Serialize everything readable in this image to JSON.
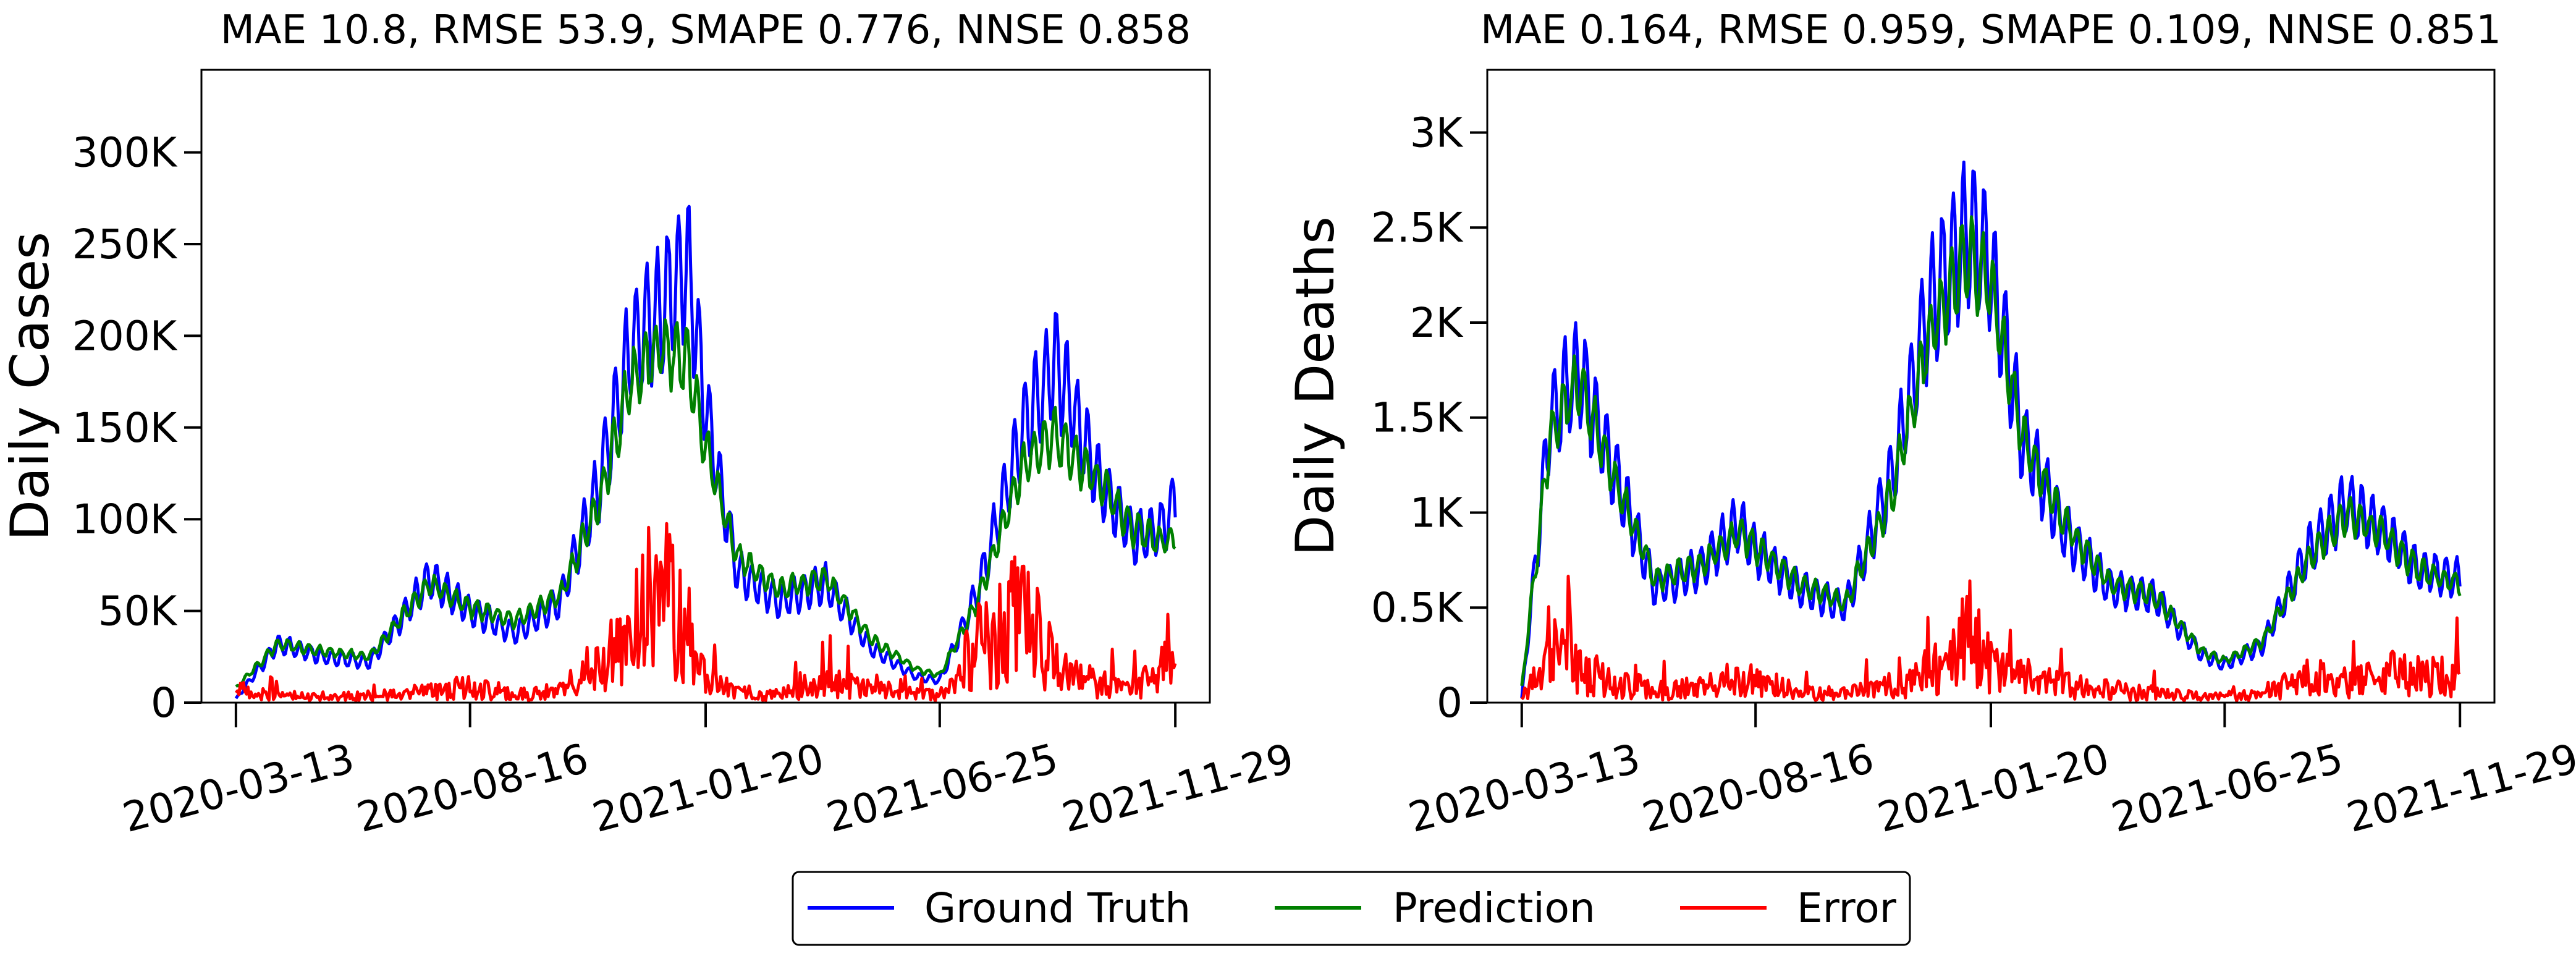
{
  "legend": [
    {
      "label": "Ground Truth",
      "color": "#0000ff"
    },
    {
      "label": "Prediction",
      "color": "#008000"
    },
    {
      "label": "Error",
      "color": "#ff0000"
    }
  ],
  "chart_data": [
    {
      "type": "line",
      "title": "MAE 10.8, RMSE 53.9, SMAPE 0.776, NNSE 0.858",
      "ylabel": "Daily Cases",
      "xlabel": "",
      "ylim": [
        0,
        345000
      ],
      "yticks": [
        0,
        50000,
        100000,
        150000,
        200000,
        250000,
        300000
      ],
      "ytick_labels": [
        "0",
        "50K",
        "100K",
        "150K",
        "200K",
        "250K",
        "300K"
      ],
      "xlim": [
        "2020-02-19",
        "2021-12-22"
      ],
      "xticks": [
        "2020-03-13",
        "2020-08-16",
        "2021-01-20",
        "2021-06-25",
        "2021-11-29"
      ],
      "grid": false,
      "series": [
        {
          "name": "Ground Truth",
          "color": "#0000ff",
          "x": [
            "2020-03-13",
            "2020-04-10",
            "2020-05-10",
            "2020-06-10",
            "2020-07-20",
            "2020-08-16",
            "2020-09-15",
            "2020-10-15",
            "2020-11-10",
            "2020-12-01",
            "2020-12-20",
            "2021-01-08",
            "2021-01-20",
            "2021-02-10",
            "2021-03-10",
            "2021-04-10",
            "2021-05-10",
            "2021-06-10",
            "2021-06-25",
            "2021-07-20",
            "2021-08-20",
            "2021-09-10",
            "2021-10-10",
            "2021-11-01",
            "2021-11-20",
            "2021-11-29"
          ],
          "y": [
            2000,
            32000,
            25000,
            22000,
            68000,
            50000,
            38000,
            55000,
            120000,
            195000,
            215000,
            240000,
            160000,
            72000,
            55000,
            65000,
            30000,
            14000,
            12000,
            60000,
            150000,
            185000,
            120000,
            90000,
            95000,
            110000
          ]
        },
        {
          "name": "Prediction",
          "color": "#008000",
          "x": [
            "2020-03-13",
            "2020-04-10",
            "2020-05-10",
            "2020-06-10",
            "2020-07-20",
            "2020-08-16",
            "2020-09-15",
            "2020-10-15",
            "2020-11-10",
            "2020-12-01",
            "2020-12-20",
            "2021-01-08",
            "2021-01-20",
            "2021-02-10",
            "2021-03-10",
            "2021-04-10",
            "2021-05-10",
            "2021-06-10",
            "2021-06-25",
            "2021-07-20",
            "2021-08-20",
            "2021-09-10",
            "2021-10-10",
            "2021-11-01",
            "2021-11-20",
            "2021-11-29"
          ],
          "y": [
            8000,
            32000,
            28000,
            25000,
            65000,
            52000,
            45000,
            58000,
            110000,
            175000,
            195000,
            185000,
            140000,
            80000,
            62000,
            68000,
            35000,
            18000,
            15000,
            55000,
            130000,
            145000,
            120000,
            95000,
            88000,
            90000
          ]
        },
        {
          "name": "Error",
          "color": "#ff0000",
          "x": [
            "2020-03-13",
            "2020-04-10",
            "2020-05-10",
            "2020-06-10",
            "2020-07-20",
            "2020-08-16",
            "2020-09-15",
            "2020-10-15",
            "2020-11-10",
            "2020-12-01",
            "2020-12-20",
            "2021-01-08",
            "2021-01-20",
            "2021-02-10",
            "2021-03-10",
            "2021-04-10",
            "2021-05-10",
            "2021-06-10",
            "2021-06-25",
            "2021-07-20",
            "2021-08-20",
            "2021-09-10",
            "2021-10-10",
            "2021-11-01",
            "2021-11-20",
            "2021-11-29"
          ],
          "y": [
            9000,
            5000,
            4000,
            5000,
            8000,
            12000,
            6000,
            8000,
            30000,
            45000,
            90000,
            50000,
            15000,
            8000,
            6000,
            15000,
            10000,
            6000,
            5000,
            40000,
            70000,
            25000,
            15000,
            12000,
            20000,
            60000
          ]
        }
      ]
    },
    {
      "type": "line",
      "title": "MAE 0.164, RMSE 0.959, SMAPE 0.109, NNSE 0.851",
      "ylabel": "Daily Deaths",
      "xlabel": "",
      "ylim": [
        0,
        3330
      ],
      "yticks": [
        0,
        500,
        1000,
        1500,
        2000,
        2500,
        3000
      ],
      "ytick_labels": [
        "0",
        "0.5K",
        "1K",
        "1.5K",
        "2K",
        "2.5K",
        "3K"
      ],
      "xlim": [
        "2020-02-19",
        "2021-12-22"
      ],
      "xticks": [
        "2020-03-13",
        "2020-08-16",
        "2021-01-20",
        "2021-06-25",
        "2021-11-29"
      ],
      "grid": false,
      "series": [
        {
          "name": "Ground Truth",
          "color": "#0000ff",
          "x": [
            "2020-03-13",
            "2020-04-01",
            "2020-04-20",
            "2020-05-10",
            "2020-06-10",
            "2020-07-10",
            "2020-08-05",
            "2020-08-16",
            "2020-09-15",
            "2020-10-15",
            "2020-11-15",
            "2020-12-10",
            "2021-01-05",
            "2021-01-20",
            "2021-02-10",
            "2021-03-10",
            "2021-04-10",
            "2021-05-10",
            "2021-06-10",
            "2021-06-25",
            "2021-07-20",
            "2021-08-20",
            "2021-09-15",
            "2021-10-10",
            "2021-11-01",
            "2021-11-29"
          ],
          "y": [
            20,
            1500,
            1750,
            1300,
            600,
            700,
            950,
            800,
            600,
            500,
            1200,
            2100,
            2500,
            2300,
            1400,
            900,
            600,
            550,
            250,
            200,
            300,
            800,
            1050,
            900,
            700,
            650
          ]
        },
        {
          "name": "Prediction",
          "color": "#008000",
          "x": [
            "2020-03-13",
            "2020-04-01",
            "2020-04-20",
            "2020-05-10",
            "2020-06-10",
            "2020-07-10",
            "2020-08-05",
            "2020-08-16",
            "2020-09-15",
            "2020-10-15",
            "2020-11-15",
            "2020-12-10",
            "2021-01-05",
            "2021-01-20",
            "2021-02-10",
            "2021-03-10",
            "2021-04-10",
            "2021-05-10",
            "2021-06-10",
            "2021-06-25",
            "2021-07-20",
            "2021-08-20",
            "2021-09-15",
            "2021-10-10",
            "2021-11-01",
            "2021-11-29"
          ],
          "y": [
            80,
            1400,
            1700,
            1250,
            650,
            720,
            900,
            820,
            620,
            520,
            1100,
            1950,
            2350,
            2200,
            1400,
            950,
            620,
            560,
            270,
            220,
            320,
            750,
            1000,
            880,
            700,
            620
          ]
        },
        {
          "name": "Error",
          "color": "#ff0000",
          "x": [
            "2020-03-13",
            "2020-04-01",
            "2020-04-20",
            "2020-05-10",
            "2020-06-10",
            "2020-07-10",
            "2020-08-05",
            "2020-08-16",
            "2020-09-15",
            "2020-10-15",
            "2020-11-15",
            "2020-12-10",
            "2021-01-05",
            "2021-01-20",
            "2021-02-10",
            "2021-03-10",
            "2021-04-10",
            "2021-05-10",
            "2021-06-10",
            "2021-06-25",
            "2021-07-20",
            "2021-08-20",
            "2021-09-15",
            "2021-10-10",
            "2021-11-01",
            "2021-11-29"
          ],
          "y": [
            30,
            350,
            250,
            150,
            90,
            100,
            180,
            150,
            70,
            60,
            130,
            200,
            500,
            250,
            180,
            120,
            90,
            70,
            40,
            50,
            60,
            180,
            150,
            220,
            200,
            180
          ]
        }
      ]
    }
  ]
}
